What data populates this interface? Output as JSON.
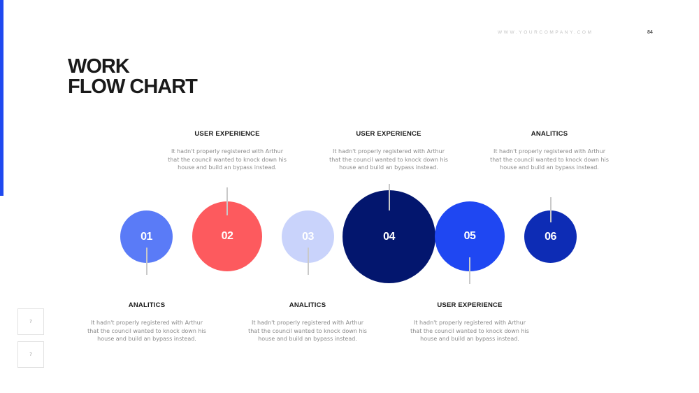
{
  "header": {
    "site_url": "WWW.YOURCOMPANY.COM",
    "page_number": "84"
  },
  "title": {
    "line1": "WORK",
    "line2": "FLOW CHART"
  },
  "steps": [
    {
      "number": "01",
      "color": "#5a7bf7",
      "heading": "ANALITICS",
      "text": "It hadn't properly registered with Arthur that the council wanted to knock down his house and build an bypass instead."
    },
    {
      "number": "02",
      "color": "#fd5a5e",
      "heading": "USER EXPERIENCE",
      "text": "It hadn't properly registered with Arthur that the council wanted to knock down his house and build an bypass instead."
    },
    {
      "number": "03",
      "color": "#c9d3fb",
      "heading": "ANALITICS",
      "text": "It hadn't properly registered with Arthur that the council wanted to knock down his house and build an bypass instead."
    },
    {
      "number": "04",
      "color": "#03166e",
      "heading": "USER EXPERIENCE",
      "text": "It hadn't properly registered with Arthur that the council wanted to knock down his house and build an bypass instead."
    },
    {
      "number": "05",
      "color": "#1f47f2",
      "heading": "USER EXPERIENCE",
      "text": "It hadn't properly registered with Arthur that the council wanted to knock down his house and build an bypass instead."
    },
    {
      "number": "06",
      "color": "#0d2cb5",
      "heading": "ANALITICS",
      "text": "It hadn't properly registered with Arthur that the council wanted to knock down his house and build an bypass instead."
    }
  ],
  "nav": {
    "prev_icon": "missing-glyph-icon",
    "next_icon": "missing-glyph-icon",
    "prev_glyph": "?",
    "next_glyph": "?"
  },
  "colors": {
    "accent": "#1f49f0",
    "title": "#1a1a1a",
    "body_text": "#8a8a8a",
    "connector": "#c9c9c9"
  }
}
